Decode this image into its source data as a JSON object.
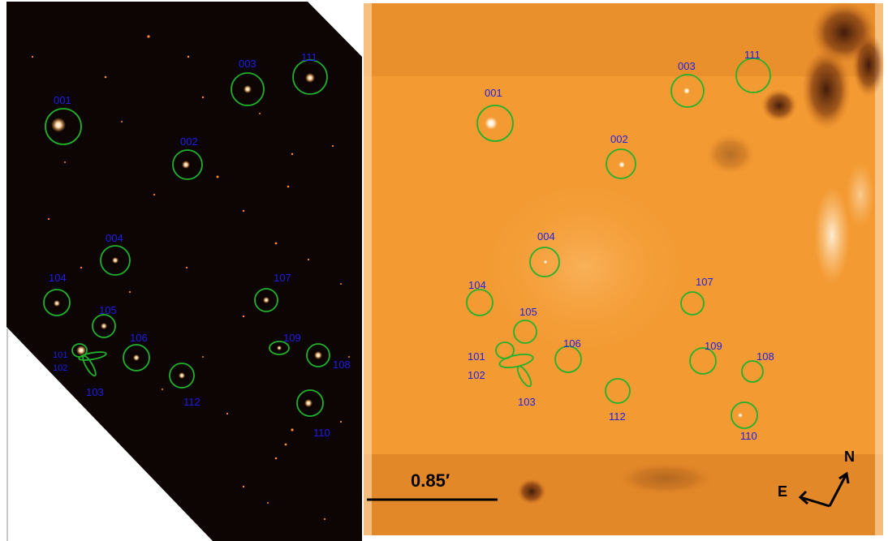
{
  "figure": {
    "left_panel": {
      "sources": [
        {
          "id": "001"
        },
        {
          "id": "002"
        },
        {
          "id": "003"
        },
        {
          "id": "111"
        },
        {
          "id": "004"
        },
        {
          "id": "104"
        },
        {
          "id": "105"
        },
        {
          "id": "107"
        },
        {
          "id": "101"
        },
        {
          "id": "102"
        },
        {
          "id": "103"
        },
        {
          "id": "106"
        },
        {
          "id": "109"
        },
        {
          "id": "108"
        },
        {
          "id": "112"
        },
        {
          "id": "110"
        }
      ]
    },
    "right_panel": {
      "sources": [
        {
          "id": "001"
        },
        {
          "id": "002"
        },
        {
          "id": "003"
        },
        {
          "id": "111"
        },
        {
          "id": "004"
        },
        {
          "id": "104"
        },
        {
          "id": "105"
        },
        {
          "id": "107"
        },
        {
          "id": "101"
        },
        {
          "id": "102"
        },
        {
          "id": "103"
        },
        {
          "id": "106"
        },
        {
          "id": "109"
        },
        {
          "id": "108"
        },
        {
          "id": "112"
        },
        {
          "id": "110"
        }
      ],
      "scale_bar_label": "0.85′",
      "compass": {
        "north": "N",
        "east": "E"
      }
    },
    "colors": {
      "left_background": "#0d0404",
      "right_background": "#f39a32",
      "ring": "#21b22b",
      "label": "#1f1ee6"
    }
  }
}
